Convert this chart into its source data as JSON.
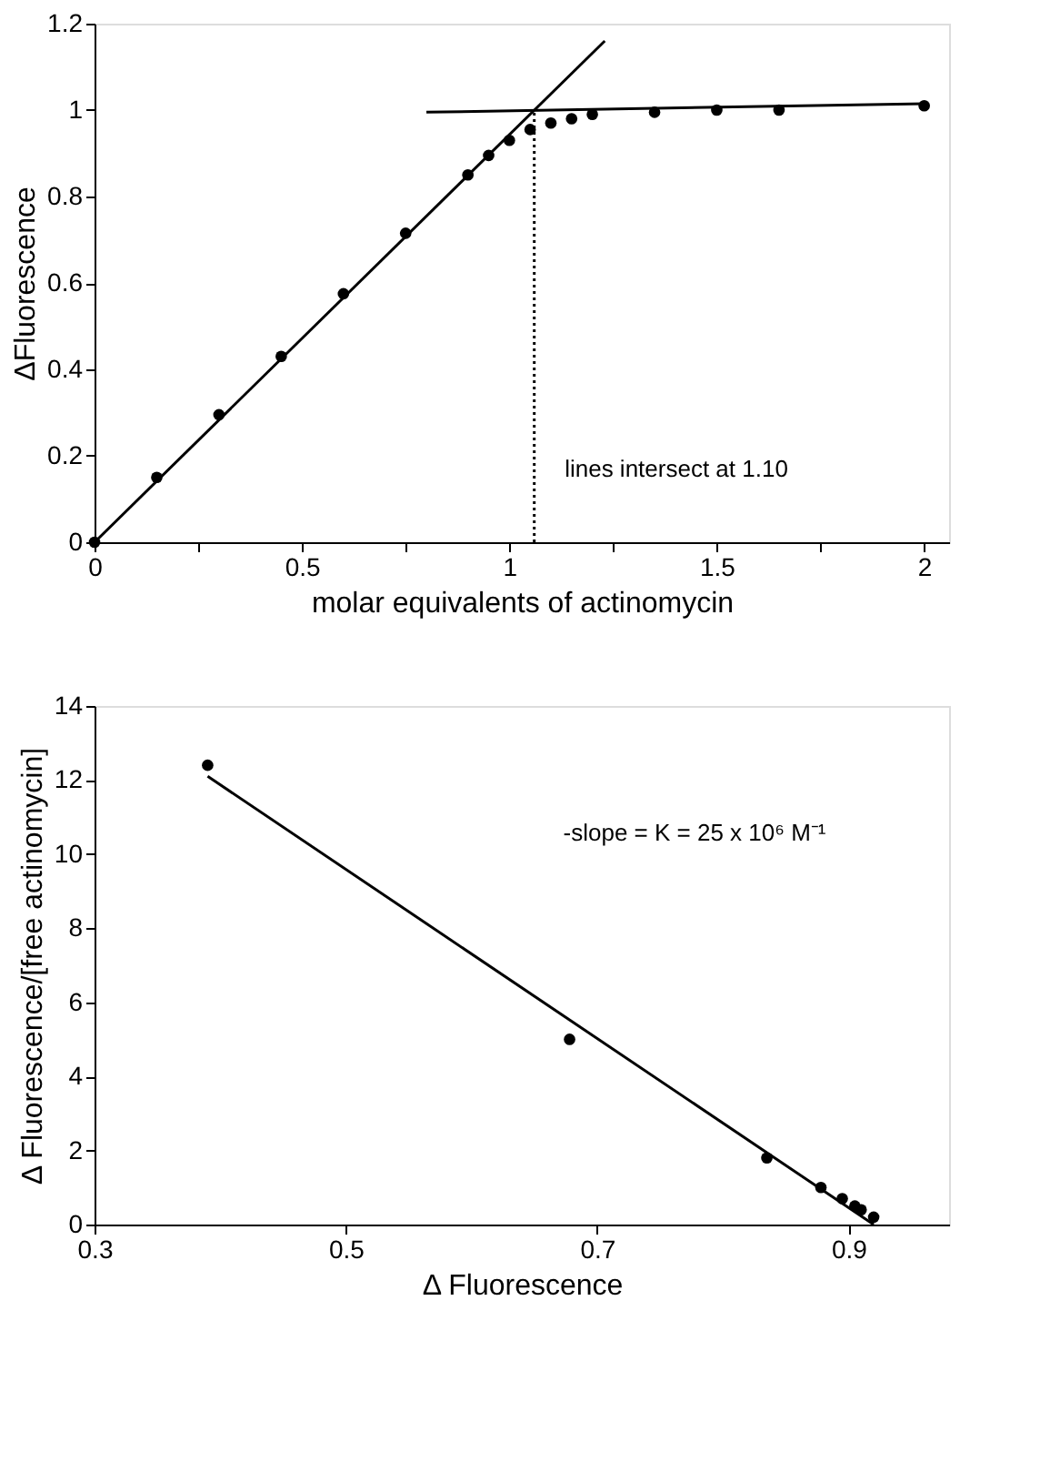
{
  "chart_data": [
    {
      "type": "scatter",
      "xlabel": "molar equivalents of actinomycin",
      "ylabel": "ΔFluorescence",
      "xlim": [
        0,
        2.06
      ],
      "xticks": [
        0,
        {
          "value": 0.25,
          "label": null
        },
        0.5,
        {
          "value": 0.75,
          "label": null
        },
        1,
        {
          "value": 1.25,
          "label": null
        },
        1.5,
        {
          "value": 1.75,
          "label": null
        },
        2
      ],
      "ylim": [
        0,
        1.2
      ],
      "yticks": [
        0,
        0.2,
        0.4,
        0.6,
        0.8,
        1,
        1.2
      ],
      "grid": false,
      "legend": false,
      "series": [
        {
          "color": "#000000",
          "marker": "circle",
          "x": [
            0,
            0.15,
            0.3,
            0.45,
            0.6,
            0.75,
            0.9,
            0.95,
            1.0,
            1.05,
            1.1,
            1.15,
            1.2,
            1.35,
            1.5,
            1.65,
            2.0
          ],
          "values": [
            0,
            0.15,
            0.295,
            0.43,
            0.575,
            0.715,
            0.85,
            0.895,
            0.93,
            0.955,
            0.97,
            0.98,
            0.99,
            0.995,
            1.0,
            1.0,
            1.01
          ]
        },
        {
          "type": "line",
          "color": "#000000",
          "line_style": "solid",
          "x": [
            0,
            1.23
          ],
          "values": [
            0,
            1.16
          ]
        },
        {
          "type": "line",
          "color": "#000000",
          "line_style": "solid",
          "x": [
            0.8,
            2.0
          ],
          "values": [
            0.995,
            1.015
          ]
        },
        {
          "type": "line",
          "color": "#000000",
          "line_style": "dotted",
          "x": [
            1.06,
            1.06
          ],
          "values": [
            0,
            1.0
          ]
        }
      ],
      "annotations": [
        "lines intersect at 1.10"
      ]
    },
    {
      "type": "scatter",
      "xlabel": "Δ Fluorescence",
      "ylabel": "Δ Fluorescence/[free actinomycin]",
      "xlim": [
        0.3,
        0.98
      ],
      "xticks": [
        0.3,
        0.5,
        0.7,
        0.9
      ],
      "ylim": [
        0,
        14
      ],
      "yticks": [
        0,
        2,
        4,
        6,
        8,
        10,
        12,
        14
      ],
      "grid": false,
      "legend": false,
      "series": [
        {
          "color": "#000000",
          "marker": "circle",
          "x": [
            0.39,
            0.678,
            0.835,
            0.878,
            0.895,
            0.905,
            0.91,
            0.92
          ],
          "values": [
            12.4,
            5.0,
            1.8,
            1.0,
            0.7,
            0.5,
            0.4,
            0.2
          ]
        },
        {
          "type": "line",
          "color": "#000000",
          "line_style": "solid",
          "x": [
            0.39,
            0.92
          ],
          "values": [
            12.1,
            0.0
          ]
        }
      ],
      "annotations": [
        "-slope = K = 25 x 10⁶ M⁻¹"
      ]
    }
  ]
}
